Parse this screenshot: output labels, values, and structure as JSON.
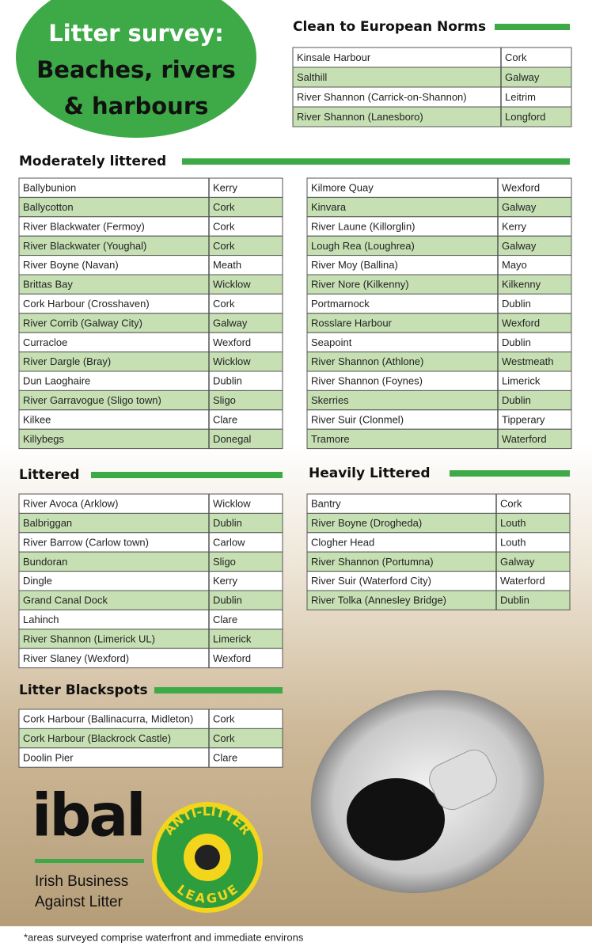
{
  "title": {
    "lines": [
      "Litter survey:",
      "Beaches, rivers",
      "& harbours"
    ]
  },
  "clean": {
    "heading": "Clean to European Norms",
    "rows": [
      [
        "Kinsale Harbour",
        "Cork"
      ],
      [
        "Salthill",
        "Galway"
      ],
      [
        "River Shannon (Carrick-on-Shannon)",
        "Leitrim"
      ],
      [
        "River Shannon (Lanesboro)",
        "Longford"
      ]
    ]
  },
  "moderate": {
    "heading": "Moderately littered",
    "left": [
      [
        "Ballybunion",
        "Kerry"
      ],
      [
        "Ballycotton",
        "Cork"
      ],
      [
        "River Blackwater (Fermoy)",
        "Cork"
      ],
      [
        "River Blackwater (Youghal)",
        "Cork"
      ],
      [
        "River Boyne (Navan)",
        "Meath"
      ],
      [
        "Brittas Bay",
        "Wicklow"
      ],
      [
        "Cork Harbour (Crosshaven)",
        "Cork"
      ],
      [
        "River Corrib (Galway City)",
        "Galway"
      ],
      [
        "Curracloe",
        "Wexford"
      ],
      [
        "River Dargle (Bray)",
        "Wicklow"
      ],
      [
        "Dun Laoghaire",
        "Dublin"
      ],
      [
        "River Garravogue (Sligo town)",
        "Sligo"
      ],
      [
        "Kilkee",
        "Clare"
      ],
      [
        "Killybegs",
        "Donegal"
      ]
    ],
    "right": [
      [
        "Kilmore Quay",
        "Wexford"
      ],
      [
        "Kinvara",
        "Galway"
      ],
      [
        "River Laune (Killorglin)",
        "Kerry"
      ],
      [
        "Lough Rea (Loughrea)",
        "Galway"
      ],
      [
        "River Moy (Ballina)",
        "Mayo"
      ],
      [
        "River Nore (Kilkenny)",
        "Kilkenny"
      ],
      [
        "Portmarnock",
        "Dublin"
      ],
      [
        "Rosslare Harbour",
        "Wexford"
      ],
      [
        "Seapoint",
        "Dublin"
      ],
      [
        "River Shannon (Athlone)",
        "Westmeath"
      ],
      [
        "River Shannon (Foynes)",
        "Limerick"
      ],
      [
        "Skerries",
        "Dublin"
      ],
      [
        "River Suir (Clonmel)",
        "Tipperary"
      ],
      [
        "Tramore",
        "Waterford"
      ]
    ]
  },
  "littered": {
    "heading": "Littered",
    "rows": [
      [
        "River Avoca (Arklow)",
        "Wicklow"
      ],
      [
        "Balbriggan",
        "Dublin"
      ],
      [
        "River Barrow (Carlow town)",
        "Carlow"
      ],
      [
        "Bundoran",
        "Sligo"
      ],
      [
        "Dingle",
        "Kerry"
      ],
      [
        "Grand Canal Dock",
        "Dublin"
      ],
      [
        "Lahinch",
        "Clare"
      ],
      [
        "River Shannon (Limerick UL)",
        "Limerick"
      ],
      [
        "River Slaney (Wexford)",
        "Wexford"
      ]
    ]
  },
  "heavily": {
    "heading": "Heavily Littered",
    "rows": [
      [
        "Bantry",
        "Cork"
      ],
      [
        "River Boyne (Drogheda)",
        "Louth"
      ],
      [
        "Clogher Head",
        "Louth"
      ],
      [
        "River Shannon (Portumna)",
        "Galway"
      ],
      [
        "River Suir (Waterford City)",
        "Waterford"
      ],
      [
        "River Tolka (Annesley Bridge)",
        "Dublin"
      ]
    ]
  },
  "blackspots": {
    "heading": "Litter Blackspots",
    "rows": [
      [
        "Cork Harbour (Ballinacurra, Midleton)",
        "Cork"
      ],
      [
        "Cork Harbour (Blackrock Castle)",
        "Cork"
      ],
      [
        "Doolin Pier",
        "Clare"
      ]
    ]
  },
  "logo": {
    "name": "ibal",
    "tagline": [
      "Irish Business",
      "Against Litter"
    ],
    "badge": [
      "ANTI-LITTER",
      "LEAGUE"
    ]
  },
  "footnote": "*areas surveyed comprise waterfront and immediate environs"
}
